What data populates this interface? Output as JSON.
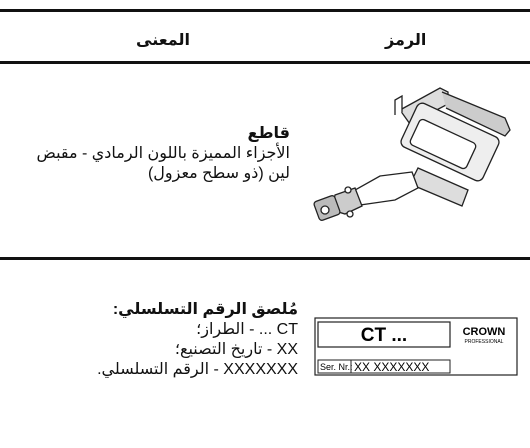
{
  "header": {
    "symbol": "الرمز",
    "meaning": "المعنى"
  },
  "rows": [
    {
      "title": "قاطع",
      "lines": [
        "الأجزاء المميزة باللون الرمادي - مقبض",
        "لين (ذو سطح معزول)"
      ]
    },
    {
      "title": "مُلصق الرقم التسلسلي:",
      "lines": [
        "CT ... - الطراز؛",
        "XX - تاريخ التصنيع؛",
        "XXXXXXX - الرقم التسلسلي."
      ],
      "label": {
        "model": "CT ...",
        "brand": "CROWN",
        "brand_sub": "PROFESSIONAL",
        "serial_caption": "Ser. Nr.:",
        "serial": "XX XXXXXXX"
      }
    }
  ]
}
